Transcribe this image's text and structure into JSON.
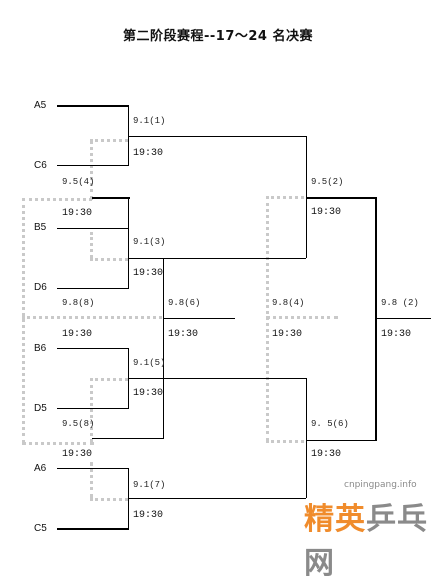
{
  "title": "第二阶段赛程--17～24 名决赛",
  "teams": {
    "a5": "A5",
    "c6": "C6",
    "b5": "B5",
    "d6": "D6",
    "b6": "B6",
    "d5": "D5",
    "a6": "A6",
    "c5": "C5"
  },
  "matches": {
    "m1": {
      "date": "9.1(1)",
      "time": "19:30"
    },
    "m2": {
      "date": "9.1(3)",
      "time": "19:30"
    },
    "m3": {
      "date": "9.1(5)",
      "time": "19:30"
    },
    "m4": {
      "date": "9.1(7)",
      "time": "19:30"
    },
    "r2a": {
      "date": "9.5(2)",
      "time": "19:30"
    },
    "r2b": {
      "date": "9. 5(6)",
      "time": "19:30"
    },
    "semi": {
      "date": "9.8(6)",
      "time": "19:30"
    },
    "final": {
      "date": "9.8 (2)",
      "time": "19:30"
    },
    "lb1": {
      "date": "9.5(4)",
      "time": "19:30"
    },
    "lb2": {
      "date": "9.5(8)",
      "time": "19:30"
    },
    "lb3": {
      "date": "9.8(8)",
      "time": "19:30"
    },
    "lb4": {
      "date": "9.8(4)",
      "time": "19:30"
    }
  },
  "watermark": {
    "site": "cnpingpang.info",
    "name_part1": "精英",
    "name_part2": "乒乓网"
  },
  "colors": {
    "line": "#000000",
    "dotted": "#c9c9c9",
    "accent": "#f08c2c",
    "grey": "#8a8a8a"
  }
}
